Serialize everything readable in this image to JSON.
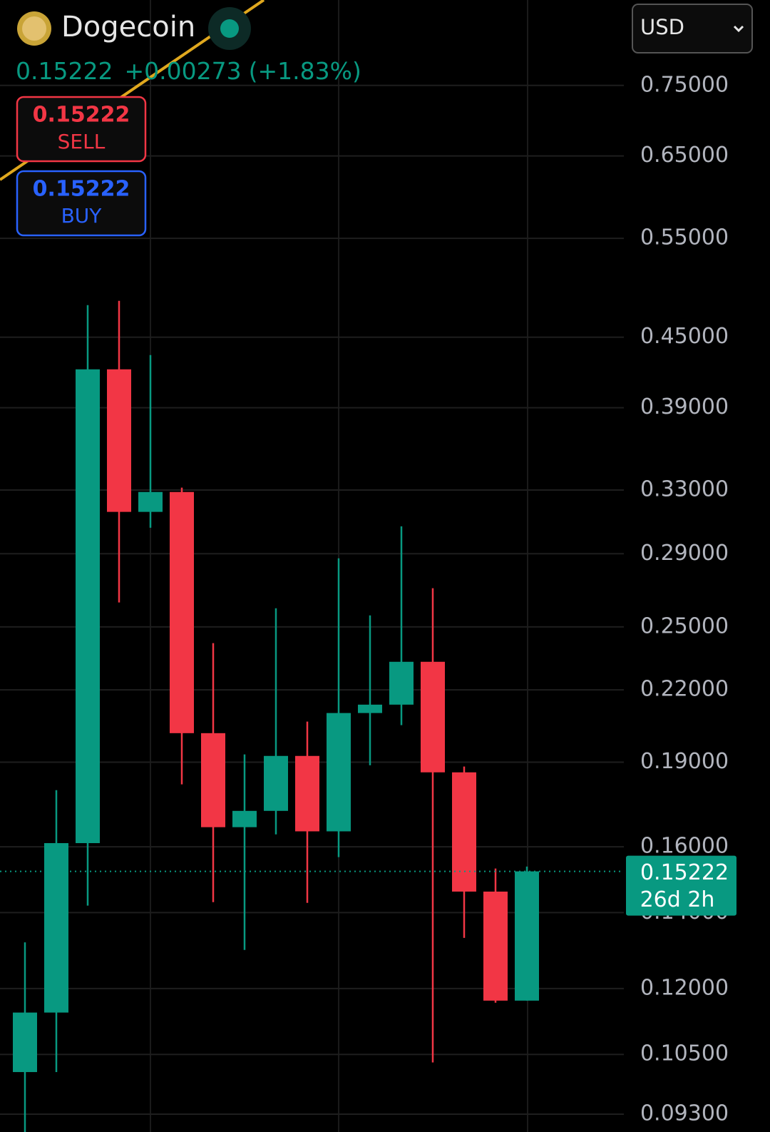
{
  "header": {
    "title": "Dogecoin",
    "price": "0.15222",
    "change": "+0.00273",
    "change_pct": "(+1.83%)",
    "currency": "USD"
  },
  "order_buttons": {
    "sell_price": "0.15222",
    "sell_label": "SELL",
    "buy_price": "0.15222",
    "buy_label": "BUY"
  },
  "chart_data": {
    "type": "candlestick",
    "categories": [
      null,
      null,
      null,
      null,
      null,
      null,
      null,
      null,
      null,
      null,
      null,
      null,
      null,
      null,
      null,
      null,
      null
    ],
    "open": [
      0.1013,
      0.1143,
      0.1612,
      0.4216,
      0.3157,
      0.3287,
      0.2015,
      0.1665,
      0.1721,
      0.1924,
      0.1651,
      0.2099,
      0.2135,
      0.2329,
      0.1861,
      0.1461,
      0.1171
    ],
    "high": [
      0.1318,
      0.1795,
      0.4803,
      0.4845,
      0.434,
      0.3316,
      0.2419,
      0.193,
      0.2596,
      0.2063,
      0.2873,
      0.2559,
      0.3066,
      0.2704,
      0.1883,
      0.1531,
      0.1537
    ],
    "low": [
      0.089,
      0.1013,
      0.142,
      0.2627,
      0.3057,
      0.1816,
      0.143,
      0.1298,
      0.1641,
      0.1428,
      0.1567,
      0.1888,
      0.2048,
      0.1033,
      0.133,
      0.1166,
      0.1171
    ],
    "close": [
      0.1143,
      0.1612,
      0.4216,
      0.3157,
      0.3287,
      0.2015,
      0.1665,
      0.1721,
      0.1924,
      0.1651,
      0.2099,
      0.2135,
      0.2329,
      0.1861,
      0.1461,
      0.1171,
      0.15222
    ],
    "up_color": "#089981",
    "down_color": "#f23645",
    "log_scale": true,
    "grid": true,
    "ylim": [
      0.0897,
      0.892
    ],
    "yticks": [
      {
        "value": 0.75,
        "label": "0.75000"
      },
      {
        "value": 0.65,
        "label": "0.65000"
      },
      {
        "value": 0.55,
        "label": "0.55000"
      },
      {
        "value": 0.45,
        "label": "0.45000"
      },
      {
        "value": 0.39,
        "label": "0.39000"
      },
      {
        "value": 0.33,
        "label": "0.33000"
      },
      {
        "value": 0.29,
        "label": "0.29000"
      },
      {
        "value": 0.25,
        "label": "0.25000"
      },
      {
        "value": 0.22,
        "label": "0.22000"
      },
      {
        "value": 0.19,
        "label": "0.19000"
      },
      {
        "value": 0.16,
        "label": "0.16000"
      },
      {
        "value": 0.14,
        "label": "0.14000"
      },
      {
        "value": 0.12,
        "label": "0.12000"
      },
      {
        "value": 0.105,
        "label": "0.10500"
      },
      {
        "value": 0.093,
        "label": "0.09300"
      }
    ],
    "price_line": {
      "value": 0.15222,
      "countdown": "26d 2h"
    }
  }
}
